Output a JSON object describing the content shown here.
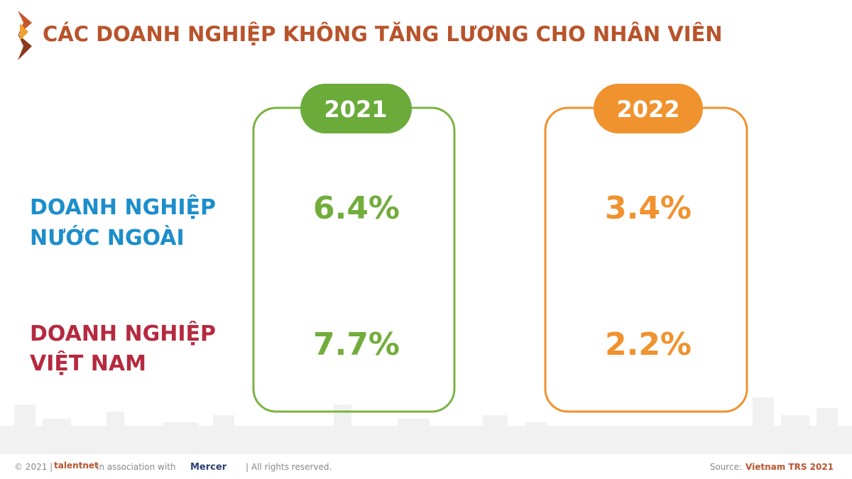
{
  "header": {
    "title": "CÁC DOANH NGHIỆP KHÔNG TĂNG LƯƠNG CHO NHÂN VIÊN"
  },
  "table": {
    "columns": [
      "2021",
      "2022"
    ],
    "rows": [
      {
        "label": [
          "DOANH NGHIỆP",
          "NƯỚC NGOÀI"
        ],
        "cells": [
          "6.4%",
          "3.4%"
        ]
      },
      {
        "label": [
          "DOANH NGHIỆP",
          "VIỆT NAM"
        ],
        "cells": [
          "7.7%",
          "2.2%"
        ]
      }
    ]
  },
  "footer": {
    "copyright": "© 2021 |",
    "brand": "talentnet",
    "association": "in association with",
    "partner": "Mercer",
    "rights": "| All rights reserved.",
    "source_label": "Source:",
    "source": "Vietnam TRS 2021"
  }
}
